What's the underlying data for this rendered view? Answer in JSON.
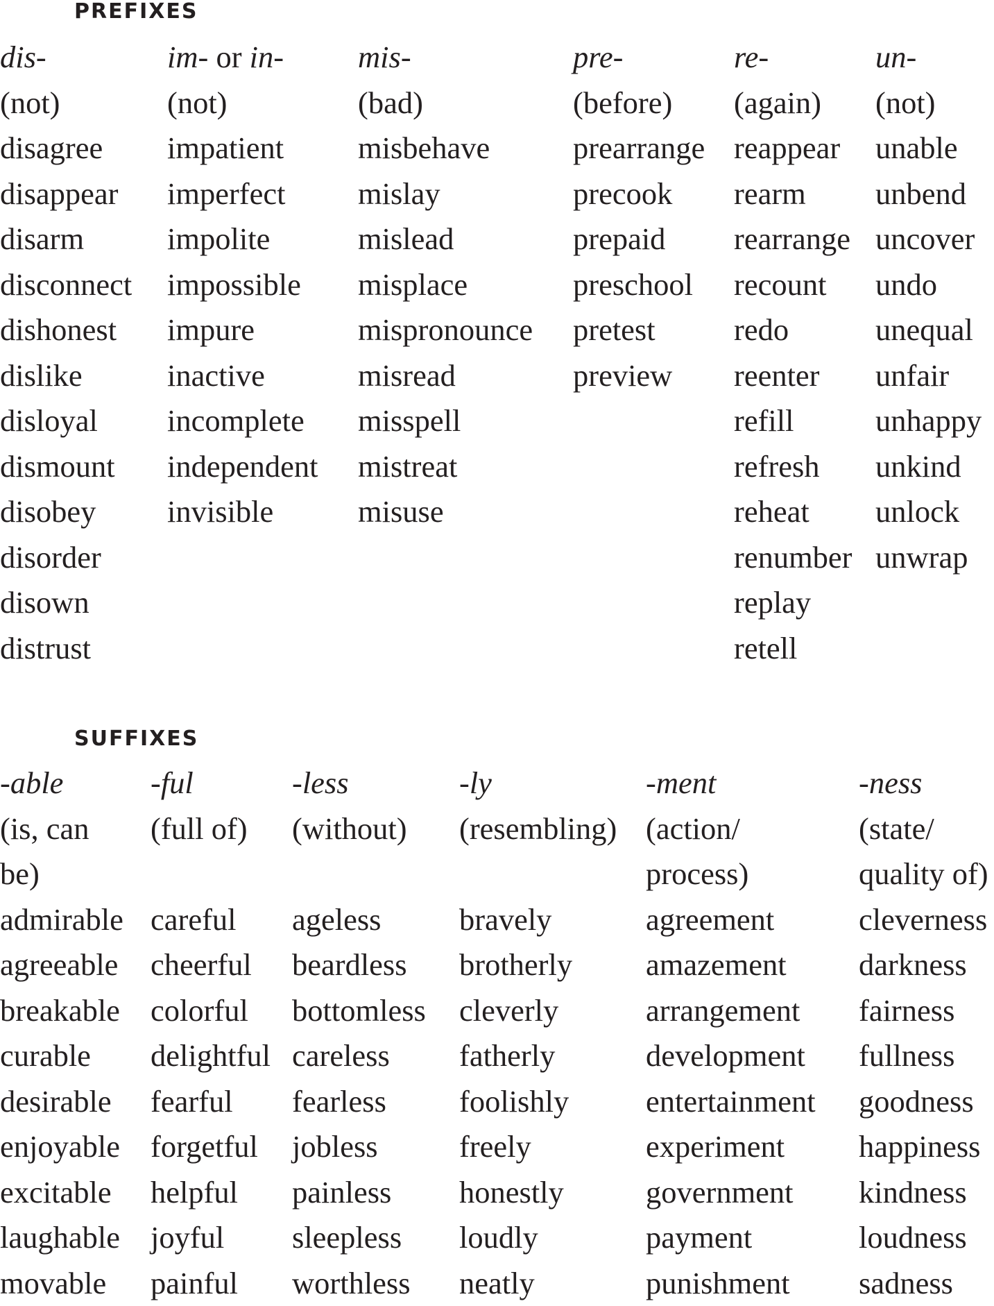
{
  "prefixes": {
    "heading": "PREFIXES",
    "columns": [
      {
        "affix": "dis-",
        "meaning": "(not)",
        "words": [
          "disagree",
          "disappear",
          "disarm",
          "disconnect",
          "dishonest",
          "dislike",
          "disloyal",
          "dismount",
          "disobey",
          "disorder",
          "disown",
          "distrust"
        ]
      },
      {
        "affix": "im-",
        "affix_joiner": " or ",
        "affix_alt": "in-",
        "meaning": "(not)",
        "words": [
          "impatient",
          "imperfect",
          "impolite",
          "impossible",
          "impure",
          "inactive",
          "incomplete",
          "independent",
          "invisible"
        ]
      },
      {
        "affix": "mis-",
        "meaning": "(bad)",
        "words": [
          "misbehave",
          "mislay",
          "mislead",
          "misplace",
          "mispronounce",
          "misread",
          "misspell",
          "mistreat",
          "misuse"
        ]
      },
      {
        "affix": "pre-",
        "meaning": "(before)",
        "words": [
          "prearrange",
          "precook",
          "prepaid",
          "preschool",
          "pretest",
          "preview"
        ]
      },
      {
        "affix": "re-",
        "meaning": "(again)",
        "words": [
          "reappear",
          "rearm",
          "rearrange",
          "recount",
          "redo",
          "reenter",
          "refill",
          "refresh",
          "reheat",
          "renumber",
          "replay",
          "retell"
        ]
      },
      {
        "affix": "un-",
        "meaning": "(not)",
        "words": [
          "unable",
          "unbend",
          "uncover",
          "undo",
          "unequal",
          "unfair",
          "unhappy",
          "unkind",
          "unlock",
          "unwrap"
        ]
      }
    ]
  },
  "suffixes": {
    "heading": "SUFFIXES",
    "columns": [
      {
        "affix": "-able",
        "meaning": [
          "(is, can",
          "be)"
        ],
        "words": [
          "admirable",
          "agreeable",
          "breakable",
          "curable",
          "desirable",
          "enjoyable",
          "excitable",
          "laughable",
          "movable"
        ]
      },
      {
        "affix": "-ful",
        "meaning": [
          "(full of)",
          ""
        ],
        "words": [
          "careful",
          "cheerful",
          "colorful",
          "delightful",
          "fearful",
          "forgetful",
          "helpful",
          "joyful",
          "painful"
        ]
      },
      {
        "affix": "-less",
        "meaning": [
          "(without)",
          ""
        ],
        "words": [
          "ageless",
          "beardless",
          "bottomless",
          "careless",
          "fearless",
          "jobless",
          "painless",
          "sleepless",
          "worthless"
        ]
      },
      {
        "affix": "-ly",
        "meaning": [
          "(resembling)",
          ""
        ],
        "words": [
          "bravely",
          "brotherly",
          "cleverly",
          "fatherly",
          "foolishly",
          "freely",
          "honestly",
          "loudly",
          "neatly"
        ]
      },
      {
        "affix": "-ment",
        "meaning": [
          "(action/",
          "process)"
        ],
        "words": [
          "agreement",
          "amazement",
          "arrangement",
          "development",
          "entertainment",
          "experiment",
          "government",
          "payment",
          "punishment"
        ]
      },
      {
        "affix": "-ness",
        "meaning": [
          "(state/",
          "quality of)"
        ],
        "words": [
          "cleverness",
          "darkness",
          "fairness",
          "fullness",
          "goodness",
          "happiness",
          "kindness",
          "loudness",
          "sadness"
        ]
      }
    ]
  }
}
